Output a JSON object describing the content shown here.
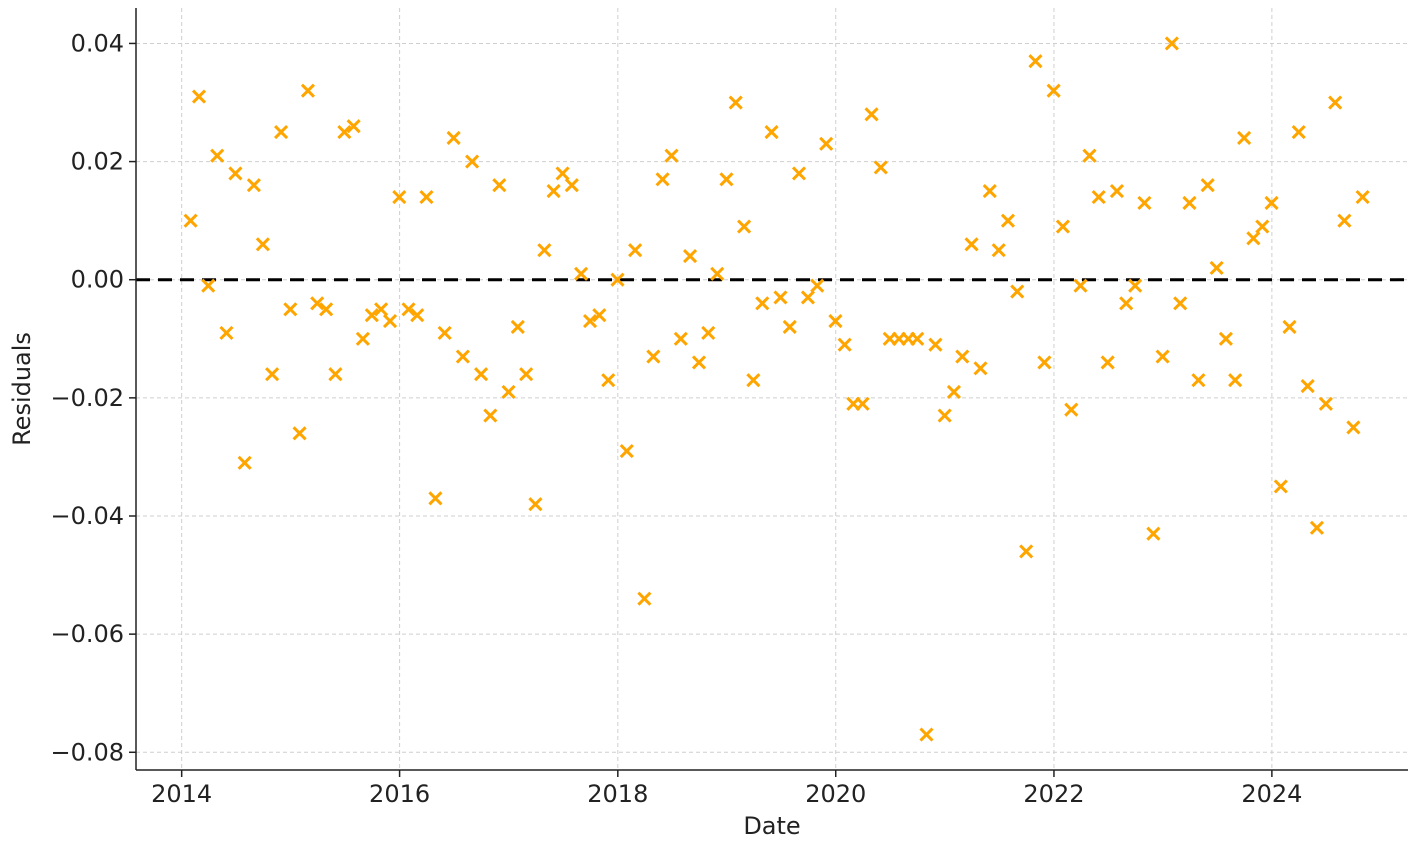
{
  "chart_data": {
    "type": "scatter",
    "xlabel": "Date",
    "ylabel": "Residuals",
    "x_axis": {
      "kind": "date",
      "range": [
        "2013-08-01",
        "2025-04-01"
      ],
      "ticks": [
        "2014",
        "2016",
        "2018",
        "2020",
        "2022",
        "2024"
      ]
    },
    "y_axis": {
      "range": [
        -0.083,
        0.046
      ],
      "ticks": [
        0.04,
        0.02,
        0.0,
        -0.02,
        -0.04,
        -0.06,
        -0.08
      ],
      "tick_labels": [
        "0.04",
        "0.02",
        "0.00",
        "−0.02",
        "−0.04",
        "−0.06",
        "−0.08"
      ]
    },
    "grid": true,
    "reference_line": {
      "y": 0.0,
      "style": "dashed",
      "color": "#000000"
    },
    "marker": {
      "shape": "x",
      "color": "#FFA500"
    },
    "points": [
      {
        "x": "2014-01-31",
        "y": 0.01
      },
      {
        "x": "2014-02-28",
        "y": 0.031
      },
      {
        "x": "2014-03-31",
        "y": -0.001
      },
      {
        "x": "2014-04-30",
        "y": 0.021
      },
      {
        "x": "2014-05-31",
        "y": -0.009
      },
      {
        "x": "2014-06-30",
        "y": 0.018
      },
      {
        "x": "2014-07-31",
        "y": -0.031
      },
      {
        "x": "2014-08-31",
        "y": 0.016
      },
      {
        "x": "2014-09-30",
        "y": 0.006
      },
      {
        "x": "2014-10-31",
        "y": -0.016
      },
      {
        "x": "2014-11-30",
        "y": 0.025
      },
      {
        "x": "2014-12-31",
        "y": -0.005
      },
      {
        "x": "2015-01-31",
        "y": -0.026
      },
      {
        "x": "2015-02-28",
        "y": 0.032
      },
      {
        "x": "2015-03-31",
        "y": -0.004
      },
      {
        "x": "2015-04-30",
        "y": -0.005
      },
      {
        "x": "2015-05-31",
        "y": -0.016
      },
      {
        "x": "2015-06-30",
        "y": 0.025
      },
      {
        "x": "2015-07-31",
        "y": 0.026
      },
      {
        "x": "2015-08-31",
        "y": -0.01
      },
      {
        "x": "2015-09-30",
        "y": -0.006
      },
      {
        "x": "2015-10-31",
        "y": -0.005
      },
      {
        "x": "2015-11-30",
        "y": -0.007
      },
      {
        "x": "2015-12-31",
        "y": 0.014
      },
      {
        "x": "2016-01-31",
        "y": -0.005
      },
      {
        "x": "2016-02-29",
        "y": -0.006
      },
      {
        "x": "2016-03-31",
        "y": 0.014
      },
      {
        "x": "2016-04-30",
        "y": -0.037
      },
      {
        "x": "2016-05-31",
        "y": -0.009
      },
      {
        "x": "2016-06-30",
        "y": 0.024
      },
      {
        "x": "2016-07-31",
        "y": -0.013
      },
      {
        "x": "2016-08-31",
        "y": 0.02
      },
      {
        "x": "2016-09-30",
        "y": -0.016
      },
      {
        "x": "2016-10-31",
        "y": -0.023
      },
      {
        "x": "2016-11-30",
        "y": 0.016
      },
      {
        "x": "2016-12-31",
        "y": -0.019
      },
      {
        "x": "2017-01-31",
        "y": -0.008
      },
      {
        "x": "2017-02-28",
        "y": -0.016
      },
      {
        "x": "2017-03-31",
        "y": -0.038
      },
      {
        "x": "2017-04-30",
        "y": 0.005
      },
      {
        "x": "2017-05-31",
        "y": 0.015
      },
      {
        "x": "2017-06-30",
        "y": 0.018
      },
      {
        "x": "2017-07-31",
        "y": 0.016
      },
      {
        "x": "2017-08-31",
        "y": 0.001
      },
      {
        "x": "2017-09-30",
        "y": -0.007
      },
      {
        "x": "2017-10-31",
        "y": -0.006
      },
      {
        "x": "2017-11-30",
        "y": -0.017
      },
      {
        "x": "2017-12-31",
        "y": 0.0
      },
      {
        "x": "2018-01-31",
        "y": -0.029
      },
      {
        "x": "2018-02-28",
        "y": 0.005
      },
      {
        "x": "2018-03-31",
        "y": -0.054
      },
      {
        "x": "2018-04-30",
        "y": -0.013
      },
      {
        "x": "2018-05-31",
        "y": 0.017
      },
      {
        "x": "2018-06-30",
        "y": 0.021
      },
      {
        "x": "2018-07-31",
        "y": -0.01
      },
      {
        "x": "2018-08-31",
        "y": 0.004
      },
      {
        "x": "2018-09-30",
        "y": -0.014
      },
      {
        "x": "2018-10-31",
        "y": -0.009
      },
      {
        "x": "2018-11-30",
        "y": 0.001
      },
      {
        "x": "2018-12-31",
        "y": 0.017
      },
      {
        "x": "2019-01-31",
        "y": 0.03
      },
      {
        "x": "2019-02-28",
        "y": 0.009
      },
      {
        "x": "2019-03-31",
        "y": -0.017
      },
      {
        "x": "2019-04-30",
        "y": -0.004
      },
      {
        "x": "2019-05-31",
        "y": 0.025
      },
      {
        "x": "2019-06-30",
        "y": -0.003
      },
      {
        "x": "2019-07-31",
        "y": -0.008
      },
      {
        "x": "2019-08-31",
        "y": 0.018
      },
      {
        "x": "2019-09-30",
        "y": -0.003
      },
      {
        "x": "2019-10-31",
        "y": -0.001
      },
      {
        "x": "2019-11-30",
        "y": 0.023
      },
      {
        "x": "2019-12-31",
        "y": -0.007
      },
      {
        "x": "2020-01-31",
        "y": -0.011
      },
      {
        "x": "2020-02-29",
        "y": -0.021
      },
      {
        "x": "2020-03-31",
        "y": -0.021
      },
      {
        "x": "2020-04-30",
        "y": 0.028
      },
      {
        "x": "2020-05-31",
        "y": 0.019
      },
      {
        "x": "2020-06-30",
        "y": -0.01
      },
      {
        "x": "2020-07-31",
        "y": -0.01
      },
      {
        "x": "2020-08-31",
        "y": -0.01
      },
      {
        "x": "2020-09-30",
        "y": -0.01
      },
      {
        "x": "2020-10-31",
        "y": -0.077
      },
      {
        "x": "2020-11-30",
        "y": -0.011
      },
      {
        "x": "2020-12-31",
        "y": -0.023
      },
      {
        "x": "2021-01-31",
        "y": -0.019
      },
      {
        "x": "2021-02-28",
        "y": -0.013
      },
      {
        "x": "2021-03-31",
        "y": 0.006
      },
      {
        "x": "2021-04-30",
        "y": -0.015
      },
      {
        "x": "2021-05-31",
        "y": 0.015
      },
      {
        "x": "2021-06-30",
        "y": 0.005
      },
      {
        "x": "2021-07-31",
        "y": 0.01
      },
      {
        "x": "2021-08-31",
        "y": -0.002
      },
      {
        "x": "2021-09-30",
        "y": -0.046
      },
      {
        "x": "2021-10-31",
        "y": 0.037
      },
      {
        "x": "2021-11-30",
        "y": -0.014
      },
      {
        "x": "2021-12-31",
        "y": 0.032
      },
      {
        "x": "2022-01-31",
        "y": 0.009
      },
      {
        "x": "2022-02-28",
        "y": -0.022
      },
      {
        "x": "2022-03-31",
        "y": -0.001
      },
      {
        "x": "2022-04-30",
        "y": 0.021
      },
      {
        "x": "2022-05-31",
        "y": 0.014
      },
      {
        "x": "2022-06-30",
        "y": -0.014
      },
      {
        "x": "2022-07-31",
        "y": 0.015
      },
      {
        "x": "2022-08-31",
        "y": -0.004
      },
      {
        "x": "2022-09-30",
        "y": -0.001
      },
      {
        "x": "2022-10-31",
        "y": 0.013
      },
      {
        "x": "2022-11-30",
        "y": -0.043
      },
      {
        "x": "2022-12-31",
        "y": -0.013
      },
      {
        "x": "2023-01-31",
        "y": 0.04
      },
      {
        "x": "2023-02-28",
        "y": -0.004
      },
      {
        "x": "2023-03-31",
        "y": 0.013
      },
      {
        "x": "2023-04-30",
        "y": -0.017
      },
      {
        "x": "2023-05-31",
        "y": 0.016
      },
      {
        "x": "2023-06-30",
        "y": 0.002
      },
      {
        "x": "2023-07-31",
        "y": -0.01
      },
      {
        "x": "2023-08-31",
        "y": -0.017
      },
      {
        "x": "2023-09-30",
        "y": 0.024
      },
      {
        "x": "2023-10-31",
        "y": 0.007
      },
      {
        "x": "2023-11-30",
        "y": 0.009
      },
      {
        "x": "2023-12-31",
        "y": 0.013
      },
      {
        "x": "2024-01-31",
        "y": -0.035
      },
      {
        "x": "2024-02-29",
        "y": -0.008
      },
      {
        "x": "2024-03-31",
        "y": 0.025
      },
      {
        "x": "2024-04-30",
        "y": -0.018
      },
      {
        "x": "2024-05-31",
        "y": -0.042
      },
      {
        "x": "2024-06-30",
        "y": -0.021
      },
      {
        "x": "2024-07-31",
        "y": 0.03
      },
      {
        "x": "2024-08-31",
        "y": 0.01
      },
      {
        "x": "2024-09-30",
        "y": -0.025
      },
      {
        "x": "2024-10-31",
        "y": 0.014
      }
    ]
  }
}
